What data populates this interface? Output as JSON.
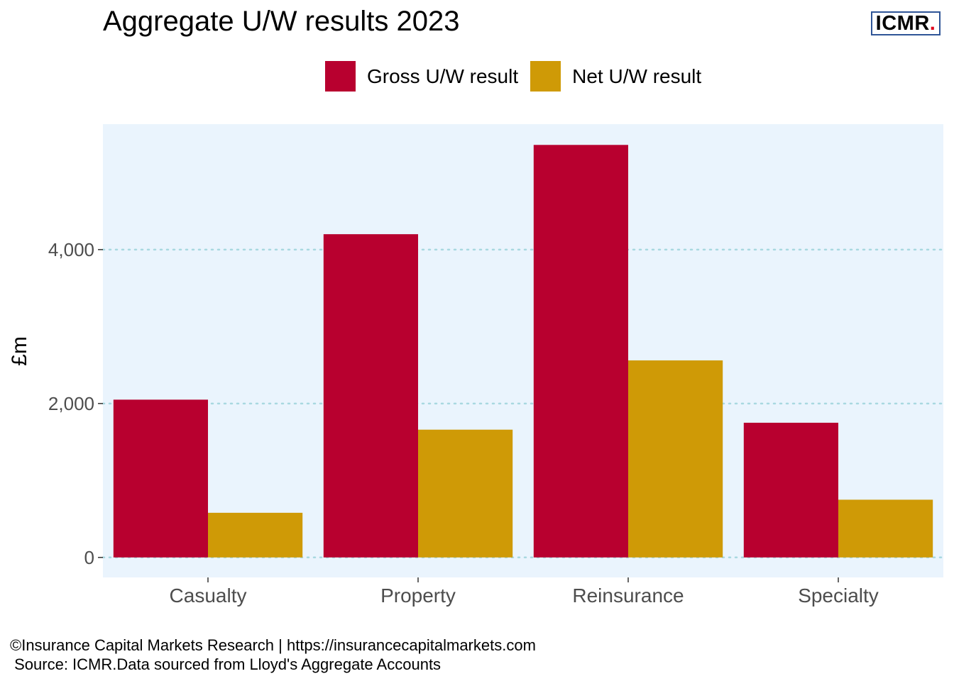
{
  "header": {
    "title": "Aggregate U/W results 2023",
    "logo_text": "ICMR",
    "logo_dot": "."
  },
  "colors": {
    "panel_background": "#eaf4fd",
    "gridline": "#a8d8e0",
    "gross": "#b8002f",
    "net": "#cf9a06",
    "tick_text": "#4d4d4d",
    "logo_border": "#2f5597",
    "logo_dot": "#e0001b"
  },
  "chart_data": {
    "type": "bar",
    "title": "Aggregate U/W results 2023",
    "xlabel": "",
    "ylabel": "£m",
    "categories": [
      "Casualty",
      "Property",
      "Reinsurance",
      "Specialty"
    ],
    "series": [
      {
        "name": "Gross U/W result",
        "values": [
          2050,
          4200,
          5360,
          1750
        ]
      },
      {
        "name": "Net U/W result",
        "values": [
          580,
          1660,
          2560,
          750
        ]
      }
    ],
    "yticks": [
      0,
      2000,
      4000
    ],
    "ytick_labels": [
      "0",
      "2,000",
      "4,000"
    ],
    "ylim": [
      -260,
      5630
    ],
    "grid": "horizontal dotted",
    "legend_position": "top"
  },
  "footer": {
    "line1": "©Insurance Capital Markets Research | https://insurancecapitalmarkets.com",
    "line2": " Source: ICMR.Data sourced from Lloyd's Aggregate Accounts"
  }
}
